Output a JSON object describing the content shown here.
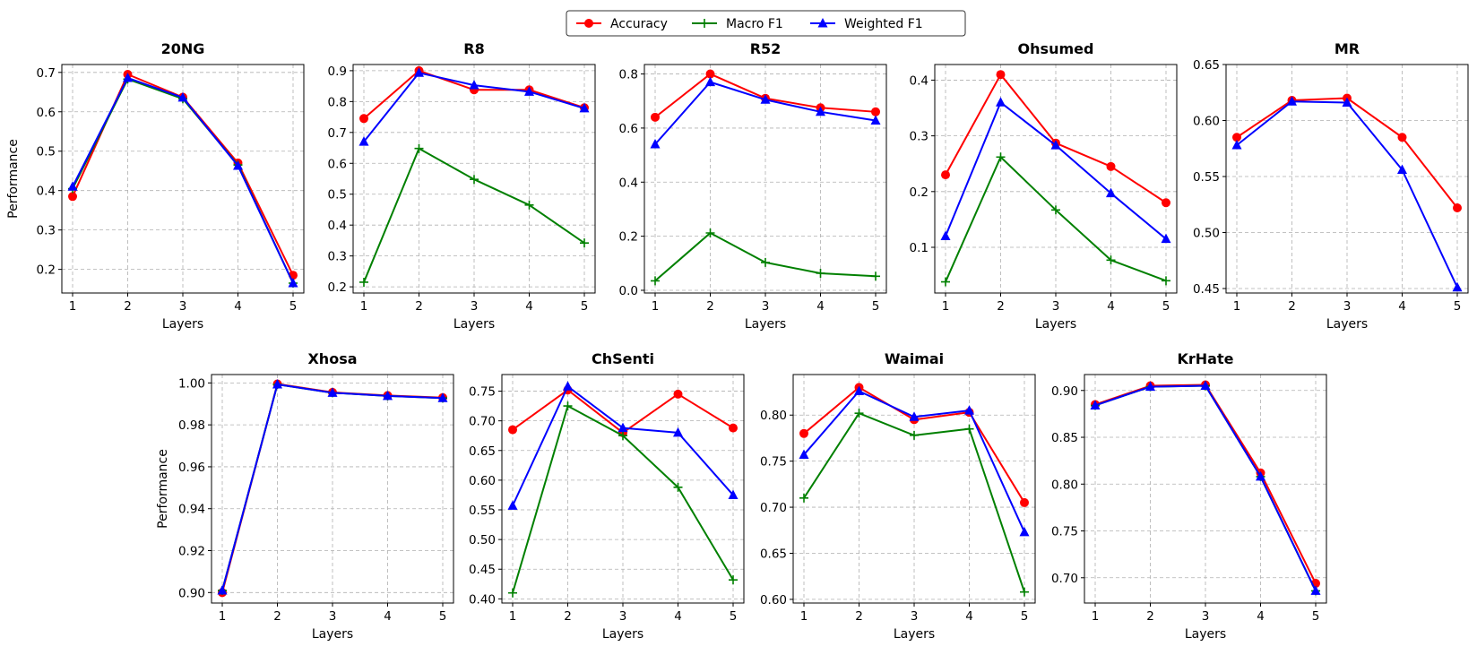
{
  "legend": {
    "items": [
      {
        "name": "Accuracy",
        "color": "#ff0000",
        "marker": "circle"
      },
      {
        "name": "Macro F1",
        "color": "#008000",
        "marker": "plus"
      },
      {
        "name": "Weighted F1",
        "color": "#0000ff",
        "marker": "triangle"
      }
    ]
  },
  "chart_data": [
    {
      "type": "line",
      "title": "20NG",
      "xlabel": "Layers",
      "ylabel": "Performance",
      "x": [
        1,
        2,
        3,
        4,
        5
      ],
      "ylim": [
        0.14,
        0.72
      ],
      "yticks": [
        0.2,
        0.3,
        0.4,
        0.5,
        0.6,
        0.7
      ],
      "ytick_labels": [
        "0.2",
        "0.3",
        "0.4",
        "0.5",
        "0.6",
        "0.7"
      ],
      "grid": true,
      "series": [
        {
          "name": "Accuracy",
          "values": [
            0.385,
            0.695,
            0.637,
            0.47,
            0.185
          ]
        },
        {
          "name": "Macro F1",
          "values": [
            0.405,
            0.683,
            0.633,
            0.465,
            0.165
          ]
        },
        {
          "name": "Weighted F1",
          "values": [
            0.41,
            0.686,
            0.636,
            0.463,
            0.165
          ]
        }
      ]
    },
    {
      "type": "line",
      "title": "R8",
      "xlabel": "Layers",
      "ylabel": "",
      "x": [
        1,
        2,
        3,
        4,
        5
      ],
      "ylim": [
        0.18,
        0.92
      ],
      "yticks": [
        0.2,
        0.3,
        0.4,
        0.5,
        0.6,
        0.7,
        0.8,
        0.9
      ],
      "ytick_labels": [
        "0.2",
        "0.3",
        "0.4",
        "0.5",
        "0.6",
        "0.7",
        "0.8",
        "0.9"
      ],
      "grid": true,
      "series": [
        {
          "name": "Accuracy",
          "values": [
            0.745,
            0.9,
            0.838,
            0.838,
            0.78
          ]
        },
        {
          "name": "Macro F1",
          "values": [
            0.215,
            0.648,
            0.548,
            0.465,
            0.342
          ]
        },
        {
          "name": "Weighted F1",
          "values": [
            0.67,
            0.893,
            0.853,
            0.832,
            0.778
          ]
        }
      ]
    },
    {
      "type": "line",
      "title": "R52",
      "xlabel": "Layers",
      "ylabel": "",
      "x": [
        1,
        2,
        3,
        4,
        5
      ],
      "ylim": [
        -0.01,
        0.835
      ],
      "yticks": [
        0.0,
        0.2,
        0.4,
        0.6,
        0.8
      ],
      "ytick_labels": [
        "0.0",
        "0.2",
        "0.4",
        "0.6",
        "0.8"
      ],
      "grid": true,
      "series": [
        {
          "name": "Accuracy",
          "values": [
            0.64,
            0.8,
            0.71,
            0.675,
            0.66
          ]
        },
        {
          "name": "Macro F1",
          "values": [
            0.035,
            0.212,
            0.103,
            0.063,
            0.052
          ]
        },
        {
          "name": "Weighted F1",
          "values": [
            0.54,
            0.77,
            0.705,
            0.66,
            0.628
          ]
        }
      ]
    },
    {
      "type": "line",
      "title": "Ohsumed",
      "xlabel": "Layers",
      "ylabel": "",
      "x": [
        1,
        2,
        3,
        4,
        5
      ],
      "ylim": [
        0.018,
        0.428
      ],
      "yticks": [
        0.1,
        0.2,
        0.3,
        0.4
      ],
      "ytick_labels": [
        "0.1",
        "0.2",
        "0.3",
        "0.4"
      ],
      "grid": true,
      "series": [
        {
          "name": "Accuracy",
          "values": [
            0.23,
            0.41,
            0.287,
            0.245,
            0.18
          ]
        },
        {
          "name": "Macro F1",
          "values": [
            0.038,
            0.262,
            0.167,
            0.077,
            0.04
          ]
        },
        {
          "name": "Weighted F1",
          "values": [
            0.12,
            0.36,
            0.283,
            0.197,
            0.115
          ]
        }
      ]
    },
    {
      "type": "line",
      "title": "MR",
      "xlabel": "Layers",
      "ylabel": "",
      "x": [
        1,
        2,
        3,
        4,
        5
      ],
      "ylim": [
        0.446,
        0.65
      ],
      "yticks": [
        0.45,
        0.5,
        0.55,
        0.6,
        0.65
      ],
      "ytick_labels": [
        "0.45",
        "0.50",
        "0.55",
        "0.60",
        "0.65"
      ],
      "grid": true,
      "series": [
        {
          "name": "Accuracy",
          "values": [
            0.585,
            0.618,
            0.62,
            0.585,
            0.522
          ]
        },
        {
          "name": "Weighted F1",
          "values": [
            0.578,
            0.617,
            0.616,
            0.556,
            0.451
          ]
        }
      ]
    },
    {
      "type": "line",
      "title": "Xhosa",
      "xlabel": "Layers",
      "ylabel": "Performance",
      "x": [
        1,
        2,
        3,
        4,
        5
      ],
      "ylim": [
        0.895,
        1.004
      ],
      "yticks": [
        0.9,
        0.92,
        0.94,
        0.96,
        0.98,
        1.0
      ],
      "ytick_labels": [
        "0.90",
        "0.92",
        "0.94",
        "0.96",
        "0.98",
        "1.00"
      ],
      "grid": true,
      "series": [
        {
          "name": "Accuracy",
          "values": [
            0.9,
            0.9995,
            0.9955,
            0.994,
            0.993
          ]
        },
        {
          "name": "Macro F1",
          "values": [
            0.901,
            0.9993,
            0.9953,
            0.9938,
            0.9928
          ]
        },
        {
          "name": "Weighted F1",
          "values": [
            0.901,
            0.9993,
            0.9953,
            0.9938,
            0.9928
          ]
        }
      ]
    },
    {
      "type": "line",
      "title": "ChSenti",
      "xlabel": "Layers",
      "ylabel": "",
      "x": [
        1,
        2,
        3,
        4,
        5
      ],
      "ylim": [
        0.393,
        0.778
      ],
      "yticks": [
        0.4,
        0.45,
        0.5,
        0.55,
        0.6,
        0.65,
        0.7,
        0.75
      ],
      "ytick_labels": [
        "0.40",
        "0.45",
        "0.50",
        "0.55",
        "0.60",
        "0.65",
        "0.70",
        "0.75"
      ],
      "grid": true,
      "series": [
        {
          "name": "Accuracy",
          "values": [
            0.685,
            0.752,
            0.68,
            0.745,
            0.688
          ]
        },
        {
          "name": "Macro F1",
          "values": [
            0.41,
            0.725,
            0.675,
            0.588,
            0.432
          ]
        },
        {
          "name": "Weighted F1",
          "values": [
            0.557,
            0.758,
            0.688,
            0.68,
            0.575
          ]
        }
      ]
    },
    {
      "type": "line",
      "title": "Waimai",
      "xlabel": "Layers",
      "ylabel": "",
      "x": [
        1,
        2,
        3,
        4,
        5
      ],
      "ylim": [
        0.596,
        0.844
      ],
      "yticks": [
        0.6,
        0.65,
        0.7,
        0.75,
        0.8
      ],
      "ytick_labels": [
        "0.60",
        "0.65",
        "0.70",
        "0.75",
        "0.80"
      ],
      "grid": true,
      "series": [
        {
          "name": "Accuracy",
          "values": [
            0.78,
            0.83,
            0.795,
            0.803,
            0.705
          ]
        },
        {
          "name": "Macro F1",
          "values": [
            0.71,
            0.802,
            0.778,
            0.785,
            0.608
          ]
        },
        {
          "name": "Weighted F1",
          "values": [
            0.757,
            0.826,
            0.798,
            0.805,
            0.673
          ]
        }
      ]
    },
    {
      "type": "line",
      "title": "KrHate",
      "xlabel": "Layers",
      "ylabel": "",
      "x": [
        1,
        2,
        3,
        4,
        5
      ],
      "ylim": [
        0.673,
        0.917
      ],
      "yticks": [
        0.7,
        0.75,
        0.8,
        0.85,
        0.9
      ],
      "ytick_labels": [
        "0.70",
        "0.75",
        "0.80",
        "0.85",
        "0.90"
      ],
      "grid": true,
      "series": [
        {
          "name": "Accuracy",
          "values": [
            0.885,
            0.905,
            0.906,
            0.812,
            0.694
          ]
        },
        {
          "name": "Macro F1",
          "values": [
            0.884,
            0.904,
            0.905,
            0.808,
            0.686
          ]
        },
        {
          "name": "Weighted F1",
          "values": [
            0.884,
            0.904,
            0.905,
            0.808,
            0.686
          ]
        }
      ]
    }
  ]
}
